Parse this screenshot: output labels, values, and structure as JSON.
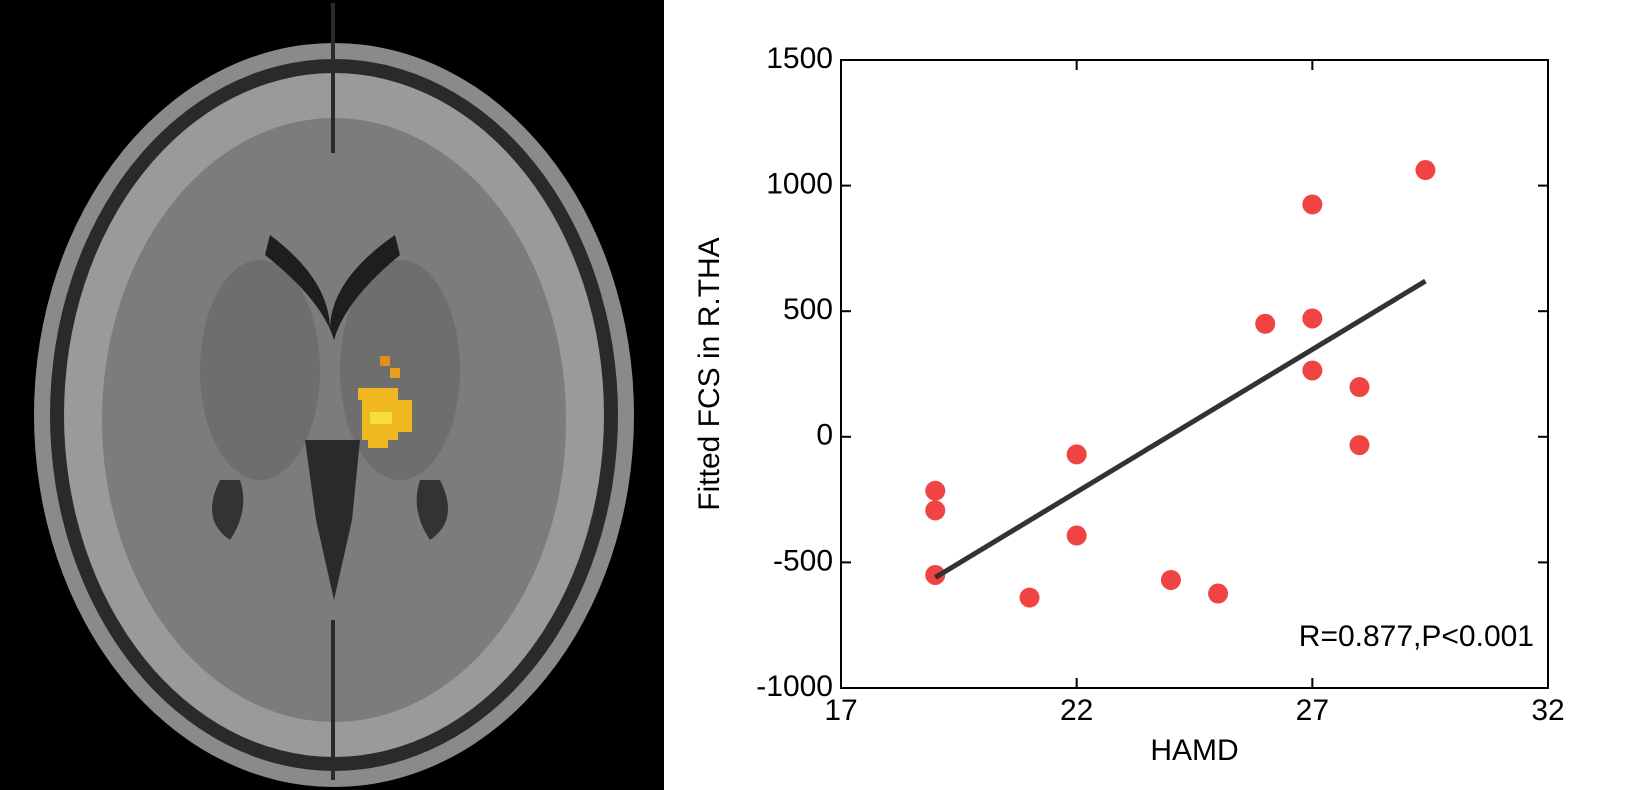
{
  "chart_data": {
    "type": "scatter",
    "xlabel": "HAMD",
    "ylabel": "Fitted FCS in R.THA",
    "annotation": "R=0.877,P<0.001",
    "xlim": [
      17,
      32
    ],
    "xticks": [
      17,
      22,
      27,
      32
    ],
    "ylim": [
      -1000,
      1500
    ],
    "yticks": [
      -1000,
      -500,
      0,
      500,
      1000,
      1500
    ],
    "color": "#f04444",
    "x": [
      19,
      19,
      19,
      21,
      22,
      22,
      24,
      25,
      26,
      27,
      27,
      27,
      28,
      28,
      29.4
    ],
    "values": [
      -215,
      -293,
      -550,
      -640,
      -70,
      -393,
      -570,
      -624,
      450,
      925,
      471,
      264,
      198,
      -33,
      1062
    ],
    "fit_line": {
      "color": "#333333",
      "x": [
        19,
        29.4
      ],
      "y": [
        -560,
        620
      ]
    }
  }
}
